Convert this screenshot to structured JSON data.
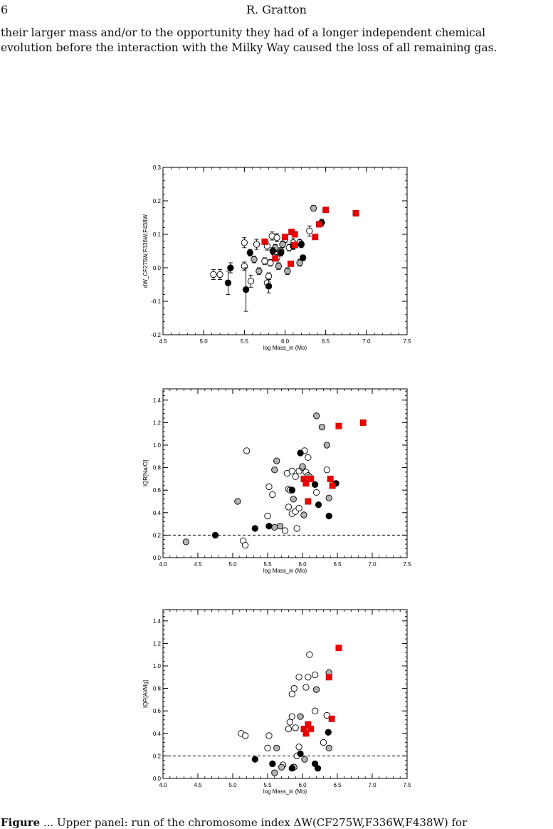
{
  "header": {
    "page_number": "6",
    "author": "R. Gratton"
  },
  "paragraph": {
    "line1": "their larger mass and/or to the opportunity they had of a longer independent chemical",
    "line2": "evolution before the interaction with the Milky Way caused the loss of all remaining gas."
  },
  "caption": {
    "label": "Figure",
    "text": "... Upper panel: run of the chromosome index ΔW(CF275W,F336W,F438W) for"
  },
  "colors": {
    "red": "#ee0000",
    "gray": "#b3b3b3",
    "black": "#000000"
  },
  "chart_data": [
    {
      "type": "scatter",
      "xlabel": "log Mass_in (Mo)",
      "ylabel": "dW_CF275W,F336W,F438W",
      "xlim": [
        4.5,
        7.5
      ],
      "ylim": [
        -0.2,
        0.3
      ],
      "xticks": [
        4.5,
        5.0,
        5.5,
        6.0,
        6.5,
        7.0,
        7.5
      ],
      "xtick_labels": [
        "4.5",
        "5.0",
        "5.5",
        "6.0",
        "6.5",
        "7.0",
        "7.5"
      ],
      "yticks": [
        -0.2,
        -0.1,
        0.0,
        0.1,
        0.2,
        0.3
      ],
      "ytick_labels": [
        "-0.2",
        "-0.1",
        "0.0",
        "0.1",
        "0.2",
        "0.3"
      ],
      "series": [
        {
          "marker": "open",
          "points": [
            [
              5.12,
              -0.02
            ],
            [
              5.2,
              -0.02
            ],
            [
              5.5,
              0.075
            ],
            [
              5.65,
              0.07
            ],
            [
              5.58,
              -0.04
            ],
            [
              5.78,
              0.065
            ],
            [
              5.84,
              0.095
            ],
            [
              5.9,
              0.09
            ],
            [
              5.95,
              0.05
            ],
            [
              6.0,
              0.085
            ],
            [
              6.1,
              0.075
            ],
            [
              6.18,
              0.075
            ],
            [
              5.82,
              0.015
            ],
            [
              5.88,
              0.04
            ],
            [
              6.3,
              0.11
            ],
            [
              5.5,
              0.005
            ],
            [
              5.78,
              -0.045
            ],
            [
              5.8,
              -0.025
            ],
            [
              5.9,
              0.03
            ],
            [
              6.05,
              0.06
            ],
            [
              5.75,
              0.02
            ]
          ],
          "yerr": [
            0.015,
            0.015,
            0.015,
            0.015,
            0.018,
            0.012,
            0.012,
            0.012,
            0.01,
            0.01,
            0.012,
            0.01,
            0.01,
            0.012,
            0.015,
            0.012,
            0.015,
            0.01,
            0.01,
            0.01,
            0.01
          ]
        },
        {
          "marker": "gray",
          "points": [
            [
              5.62,
              0.025
            ],
            [
              5.68,
              -0.01
            ],
            [
              5.88,
              0.06
            ],
            [
              5.92,
              0.005
            ],
            [
              5.97,
              0.07
            ],
            [
              6.03,
              -0.01
            ],
            [
              6.18,
              0.015
            ],
            [
              6.35,
              0.178
            ]
          ],
          "yerr": [
            0.01,
            0.01,
            0.01,
            0.01,
            0.01,
            0.01,
            0.01,
            0.008
          ]
        },
        {
          "marker": "black",
          "points": [
            [
              5.3,
              -0.045
            ],
            [
              5.33,
              0.0
            ],
            [
              5.52,
              -0.065
            ],
            [
              5.57,
              0.045
            ],
            [
              5.8,
              -0.055
            ],
            [
              5.85,
              0.05
            ],
            [
              5.95,
              0.045
            ],
            [
              6.1,
              0.065
            ],
            [
              6.2,
              0.07
            ],
            [
              6.22,
              0.03
            ],
            [
              6.45,
              0.135
            ]
          ],
          "yerr": [
            0.035,
            0.015,
            0.065,
            0.01,
            0.02,
            0.01,
            0.01,
            0.01,
            0.01,
            0.008,
            0.01
          ]
        },
        {
          "marker": "red",
          "points": [
            [
              5.75,
              0.078
            ],
            [
              5.88,
              0.028
            ],
            [
              6.0,
              0.092
            ],
            [
              6.07,
              0.012
            ],
            [
              6.08,
              0.107
            ],
            [
              6.12,
              0.1
            ],
            [
              6.12,
              0.068
            ],
            [
              6.37,
              0.092
            ],
            [
              6.42,
              0.13
            ],
            [
              6.5,
              0.173
            ],
            [
              6.87,
              0.163
            ]
          ],
          "yerr": [
            0,
            0,
            0,
            0,
            0,
            0,
            0,
            0,
            0,
            0,
            0.008
          ]
        }
      ]
    },
    {
      "type": "scatter",
      "xlabel": "log Mass_in (Mo)",
      "ylabel": "IQR[Na/O]",
      "xlim": [
        4.0,
        7.5
      ],
      "ylim": [
        0.0,
        1.5
      ],
      "xticks": [
        4.0,
        4.5,
        5.0,
        5.5,
        6.0,
        6.5,
        7.0,
        7.5
      ],
      "xtick_labels": [
        "4.0",
        "4.5",
        "5.0",
        "5.5",
        "6.0",
        "6.5",
        "7.0",
        "7.5"
      ],
      "yticks": [
        0.0,
        0.2,
        0.4,
        0.6,
        0.8,
        1.0,
        1.2,
        1.4
      ],
      "ytick_labels": [
        "0.0",
        "0.2",
        "0.4",
        "0.6",
        "0.8",
        "1.0",
        "1.2",
        "1.4"
      ],
      "dashed_line_y": 0.2,
      "series": [
        {
          "marker": "open",
          "points": [
            [
              5.2,
              0.95
            ],
            [
              5.15,
              0.15
            ],
            [
              5.18,
              0.11
            ],
            [
              5.5,
              0.37
            ],
            [
              5.52,
              0.63
            ],
            [
              5.57,
              0.56
            ],
            [
              5.8,
              0.61
            ],
            [
              5.85,
              0.6
            ],
            [
              5.78,
              0.75
            ],
            [
              5.85,
              0.77
            ],
            [
              5.9,
              0.72
            ],
            [
              5.95,
              0.77
            ],
            [
              6.03,
              0.95
            ],
            [
              6.08,
              0.89
            ],
            [
              6.0,
              0.8
            ],
            [
              6.05,
              0.76
            ],
            [
              6.08,
              0.73
            ],
            [
              5.8,
              0.45
            ],
            [
              5.85,
              0.39
            ],
            [
              5.9,
              0.41
            ],
            [
              5.95,
              0.44
            ],
            [
              5.92,
              0.26
            ],
            [
              5.75,
              0.24
            ],
            [
              6.2,
              0.58
            ],
            [
              6.35,
              0.78
            ],
            [
              5.82,
              0.6
            ]
          ]
        },
        {
          "marker": "gray",
          "points": [
            [
              4.33,
              0.14
            ],
            [
              5.07,
              0.5
            ],
            [
              5.6,
              0.78
            ],
            [
              5.63,
              0.86
            ],
            [
              5.6,
              0.27
            ],
            [
              5.68,
              0.28
            ],
            [
              6.0,
              0.81
            ],
            [
              6.02,
              0.38
            ],
            [
              6.1,
              0.72
            ],
            [
              6.2,
              1.26
            ],
            [
              6.28,
              1.16
            ],
            [
              6.35,
              1.0
            ],
            [
              6.38,
              0.53
            ],
            [
              5.87,
              0.52
            ]
          ]
        },
        {
          "marker": "black",
          "points": [
            [
              4.75,
              0.2
            ],
            [
              5.32,
              0.26
            ],
            [
              5.52,
              0.28
            ],
            [
              5.85,
              0.6
            ],
            [
              5.97,
              0.93
            ],
            [
              6.18,
              0.65
            ],
            [
              6.23,
              0.47
            ],
            [
              6.38,
              0.37
            ],
            [
              6.48,
              0.66
            ]
          ]
        },
        {
          "marker": "red",
          "points": [
            [
              6.02,
              0.7
            ],
            [
              6.05,
              0.66
            ],
            [
              6.08,
              0.5
            ],
            [
              6.12,
              0.7
            ],
            [
              6.4,
              0.7
            ],
            [
              6.43,
              0.64
            ],
            [
              6.52,
              1.17
            ],
            [
              6.87,
              1.2
            ]
          ]
        }
      ]
    },
    {
      "type": "scatter",
      "xlabel": "log Mass_in (Mo)",
      "ylabel": "IQR[Al/Mg]",
      "xlim": [
        4.0,
        7.5
      ],
      "ylim": [
        0.0,
        1.5
      ],
      "xticks": [
        4.0,
        4.5,
        5.0,
        5.5,
        6.0,
        6.5,
        7.0,
        7.5
      ],
      "xtick_labels": [
        "4.0",
        "4.5",
        "5.0",
        "5.5",
        "6.0",
        "6.5",
        "7.0",
        "7.5"
      ],
      "yticks": [
        0.0,
        0.2,
        0.4,
        0.6,
        0.8,
        1.0,
        1.2,
        1.4
      ],
      "ytick_labels": [
        "0.0",
        "0.2",
        "0.4",
        "0.6",
        "0.8",
        "1.0",
        "1.2",
        "1.4"
      ],
      "dashed_line_y": 0.2,
      "series": [
        {
          "marker": "open",
          "points": [
            [
              5.12,
              0.4
            ],
            [
              5.18,
              0.38
            ],
            [
              5.5,
              0.27
            ],
            [
              5.52,
              0.38
            ],
            [
              5.72,
              0.12
            ],
            [
              5.8,
              0.44
            ],
            [
              5.82,
              0.5
            ],
            [
              5.85,
              0.75
            ],
            [
              5.85,
              0.55
            ],
            [
              5.88,
              0.8
            ],
            [
              5.9,
              0.45
            ],
            [
              5.95,
              0.9
            ],
            [
              5.95,
              0.28
            ],
            [
              6.05,
              0.81
            ],
            [
              6.08,
              0.9
            ],
            [
              6.1,
              1.1
            ],
            [
              6.18,
              0.92
            ],
            [
              6.18,
              0.6
            ],
            [
              6.3,
              0.32
            ],
            [
              6.35,
              0.56
            ],
            [
              5.92,
              0.2
            ],
            [
              5.87,
              0.1
            ]
          ]
        },
        {
          "marker": "gray",
          "points": [
            [
              5.6,
              0.05
            ],
            [
              5.63,
              0.27
            ],
            [
              5.7,
              0.1
            ],
            [
              5.88,
              0.1
            ],
            [
              5.97,
              0.55
            ],
            [
              6.03,
              0.17
            ],
            [
              6.2,
              0.79
            ],
            [
              6.38,
              0.94
            ],
            [
              6.38,
              0.27
            ]
          ]
        },
        {
          "marker": "black",
          "points": [
            [
              5.32,
              0.17
            ],
            [
              5.57,
              0.13
            ],
            [
              5.85,
              0.09
            ],
            [
              5.97,
              0.22
            ],
            [
              6.18,
              0.13
            ],
            [
              6.22,
              0.09
            ],
            [
              6.37,
              0.41
            ]
          ]
        },
        {
          "marker": "red",
          "points": [
            [
              6.02,
              0.44
            ],
            [
              6.05,
              0.4
            ],
            [
              6.08,
              0.48
            ],
            [
              6.12,
              0.44
            ],
            [
              6.38,
              0.9
            ],
            [
              6.42,
              0.53
            ],
            [
              6.52,
              1.16
            ]
          ]
        }
      ]
    }
  ]
}
